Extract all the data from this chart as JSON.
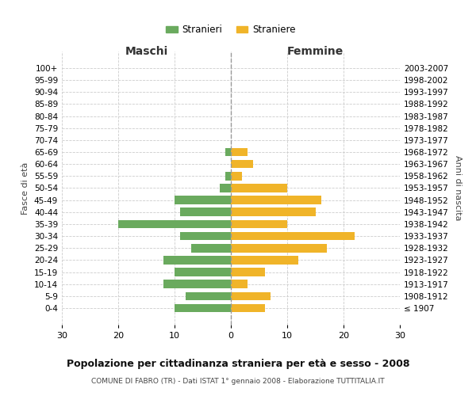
{
  "age_groups": [
    "100+",
    "95-99",
    "90-94",
    "85-89",
    "80-84",
    "75-79",
    "70-74",
    "65-69",
    "60-64",
    "55-59",
    "50-54",
    "45-49",
    "40-44",
    "35-39",
    "30-34",
    "25-29",
    "20-24",
    "15-19",
    "10-14",
    "5-9",
    "0-4"
  ],
  "birth_years": [
    "≤ 1907",
    "1908-1912",
    "1913-1917",
    "1918-1922",
    "1923-1927",
    "1928-1932",
    "1933-1937",
    "1938-1942",
    "1943-1947",
    "1948-1952",
    "1953-1957",
    "1958-1962",
    "1963-1967",
    "1968-1972",
    "1973-1977",
    "1978-1982",
    "1983-1987",
    "1988-1992",
    "1993-1997",
    "1998-2002",
    "2003-2007"
  ],
  "males": [
    0,
    0,
    0,
    0,
    0,
    0,
    0,
    1,
    0,
    1,
    2,
    10,
    9,
    20,
    9,
    7,
    12,
    10,
    12,
    8,
    10
  ],
  "females": [
    0,
    0,
    0,
    0,
    0,
    0,
    0,
    3,
    4,
    2,
    10,
    16,
    15,
    10,
    22,
    17,
    12,
    6,
    3,
    7,
    6
  ],
  "male_color": "#6aaa5e",
  "female_color": "#f0b429",
  "background_color": "#ffffff",
  "grid_color": "#cccccc",
  "title": "Popolazione per cittadinanza straniera per età e sesso - 2008",
  "subtitle": "COMUNE DI FABRO (TR) - Dati ISTAT 1° gennaio 2008 - Elaborazione TUTTITALIA.IT",
  "xlabel_left": "Maschi",
  "xlabel_right": "Femmine",
  "ylabel_left": "Fasce di età",
  "ylabel_right": "Anni di nascita",
  "legend_male": "Stranieri",
  "legend_female": "Straniere",
  "xlim": 30
}
